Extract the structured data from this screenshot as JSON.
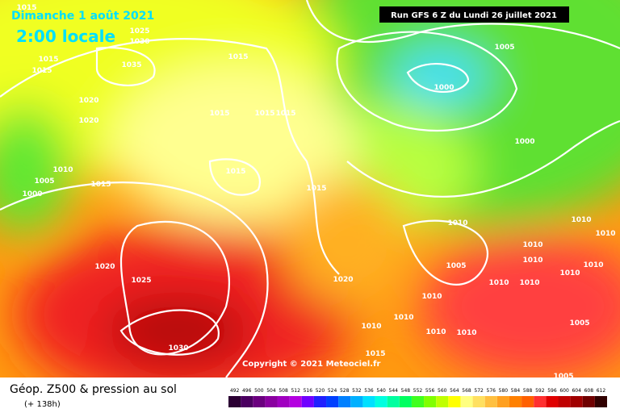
{
  "header": {
    "date": "Dimanche 1 août 2021",
    "time": "2:00 locale",
    "run": "Run GFS 6 Z du Lundi 26 juillet 2021"
  },
  "map": {
    "copyright": "Copyright © 2021 Meteociel.fr",
    "isobar_labels": [
      1015,
      1025,
      1030,
      1035,
      1015,
      1015,
      1015,
      1020,
      1020,
      1015,
      1015,
      1015,
      1010,
      1005,
      1000,
      1015,
      1015,
      1015,
      1005,
      1000,
      1000,
      1010,
      1020,
      1025,
      1030,
      1020,
      1005,
      1010,
      1010,
      1010,
      1010,
      1010,
      1015,
      1005,
      1005,
      1010,
      1010,
      1010,
      1010,
      1010,
      1010,
      1010,
      1010
    ]
  },
  "footer": {
    "title": "Géop. Z500 & pression au sol",
    "lead": "(+ 138h)"
  },
  "scale": {
    "values": [
      492,
      496,
      500,
      504,
      508,
      512,
      516,
      520,
      524,
      528,
      532,
      536,
      540,
      544,
      548,
      552,
      556,
      560,
      564,
      568,
      572,
      576,
      580,
      584,
      588,
      592,
      596,
      600,
      604,
      608,
      612
    ],
    "colors": [
      "#2b0033",
      "#4b0060",
      "#6b007f",
      "#8a00a0",
      "#a000c0",
      "#b400e0",
      "#7000ff",
      "#2020ff",
      "#0040ff",
      "#0080ff",
      "#00b0ff",
      "#00e0ff",
      "#00ffe0",
      "#00ffa0",
      "#00ff60",
      "#40ff20",
      "#80ff00",
      "#c0ff00",
      "#ffff00",
      "#ffff80",
      "#ffe060",
      "#ffc040",
      "#ffa020",
      "#ff8000",
      "#ff6000",
      "#ff3030",
      "#e00000",
      "#c00000",
      "#a00000",
      "#700000",
      "#300000"
    ]
  }
}
